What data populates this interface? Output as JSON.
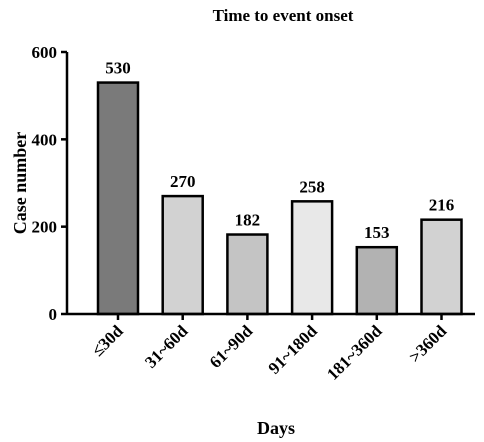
{
  "chart_data": {
    "type": "bar",
    "title": "Time to event onset",
    "xlabel": "Days",
    "ylabel": "Case number",
    "categories": [
      "≤30d",
      "31~60d",
      "61~90d",
      "91~180d",
      "181~360d",
      ">360d"
    ],
    "values": [
      530,
      270,
      182,
      258,
      153,
      216
    ],
    "data_labels": [
      "530",
      "270",
      "182",
      "258",
      "153",
      "216"
    ],
    "colors": [
      "#7a7a7a",
      "#d2d2d2",
      "#c4c4c4",
      "#e8e8e8",
      "#b2b2b2",
      "#d2d2d2"
    ],
    "ylim": [
      0,
      600
    ],
    "yticks": [
      0,
      200,
      400,
      600
    ],
    "ytick_labels": [
      "0",
      "200",
      "400",
      "600"
    ],
    "grid": false,
    "legend": "none"
  }
}
